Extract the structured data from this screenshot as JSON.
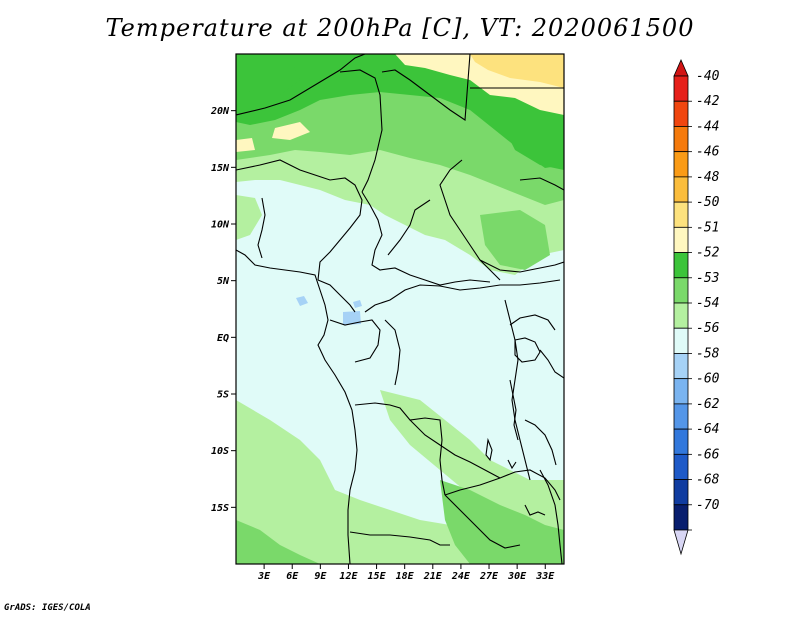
{
  "title": "Temperature at 200hPa [C], VT: 2020061500",
  "credit": "GrADS: IGES/COLA",
  "map": {
    "lat_ticks": [
      {
        "lat": 20,
        "label": "20N"
      },
      {
        "lat": 15,
        "label": "15N"
      },
      {
        "lat": 10,
        "label": "10N"
      },
      {
        "lat": 5,
        "label": "5N"
      },
      {
        "lat": 0,
        "label": "EQ"
      },
      {
        "lat": -5,
        "label": "5S"
      },
      {
        "lat": -10,
        "label": "10S"
      },
      {
        "lat": -15,
        "label": "15S"
      }
    ],
    "lon_ticks": [
      {
        "lon": 3,
        "label": "3E"
      },
      {
        "lon": 6,
        "label": "6E"
      },
      {
        "lon": 9,
        "label": "9E"
      },
      {
        "lon": 12,
        "label": "12E"
      },
      {
        "lon": 15,
        "label": "15E"
      },
      {
        "lon": 18,
        "label": "18E"
      },
      {
        "lon": 21,
        "label": "21E"
      },
      {
        "lon": 24,
        "label": "24E"
      },
      {
        "lon": 27,
        "label": "27E"
      },
      {
        "lon": 30,
        "label": "30E"
      },
      {
        "lon": 33,
        "label": "33E"
      }
    ]
  },
  "colorbar": {
    "levels": [
      {
        "label": "-40",
        "color": "#e6201a"
      },
      {
        "label": "-42",
        "color": "#f0460f"
      },
      {
        "label": "-44",
        "color": "#f57a0c"
      },
      {
        "label": "-46",
        "color": "#fa9b16"
      },
      {
        "label": "-48",
        "color": "#fbbd3c"
      },
      {
        "label": "-50",
        "color": "#fde27e"
      },
      {
        "label": "-51",
        "color": "#fff7c0"
      },
      {
        "label": "-52",
        "color": "#3cc43a"
      },
      {
        "label": "-53",
        "color": "#7ad96a"
      },
      {
        "label": "-54",
        "color": "#b4f0a0"
      },
      {
        "label": "-56",
        "color": "#e0fbf8"
      },
      {
        "label": "-58",
        "color": "#a6d2f6"
      },
      {
        "label": "-60",
        "color": "#7ab4f0"
      },
      {
        "label": "-62",
        "color": "#5496e8"
      },
      {
        "label": "-64",
        "color": "#3278dc"
      },
      {
        "label": "-66",
        "color": "#1e5ac8"
      },
      {
        "label": "-68",
        "color": "#103ca0"
      },
      {
        "label": "-70",
        "color": "#081e6e"
      }
    ],
    "top_color": "#d21414",
    "bottom_color": "#d8d6f4"
  }
}
